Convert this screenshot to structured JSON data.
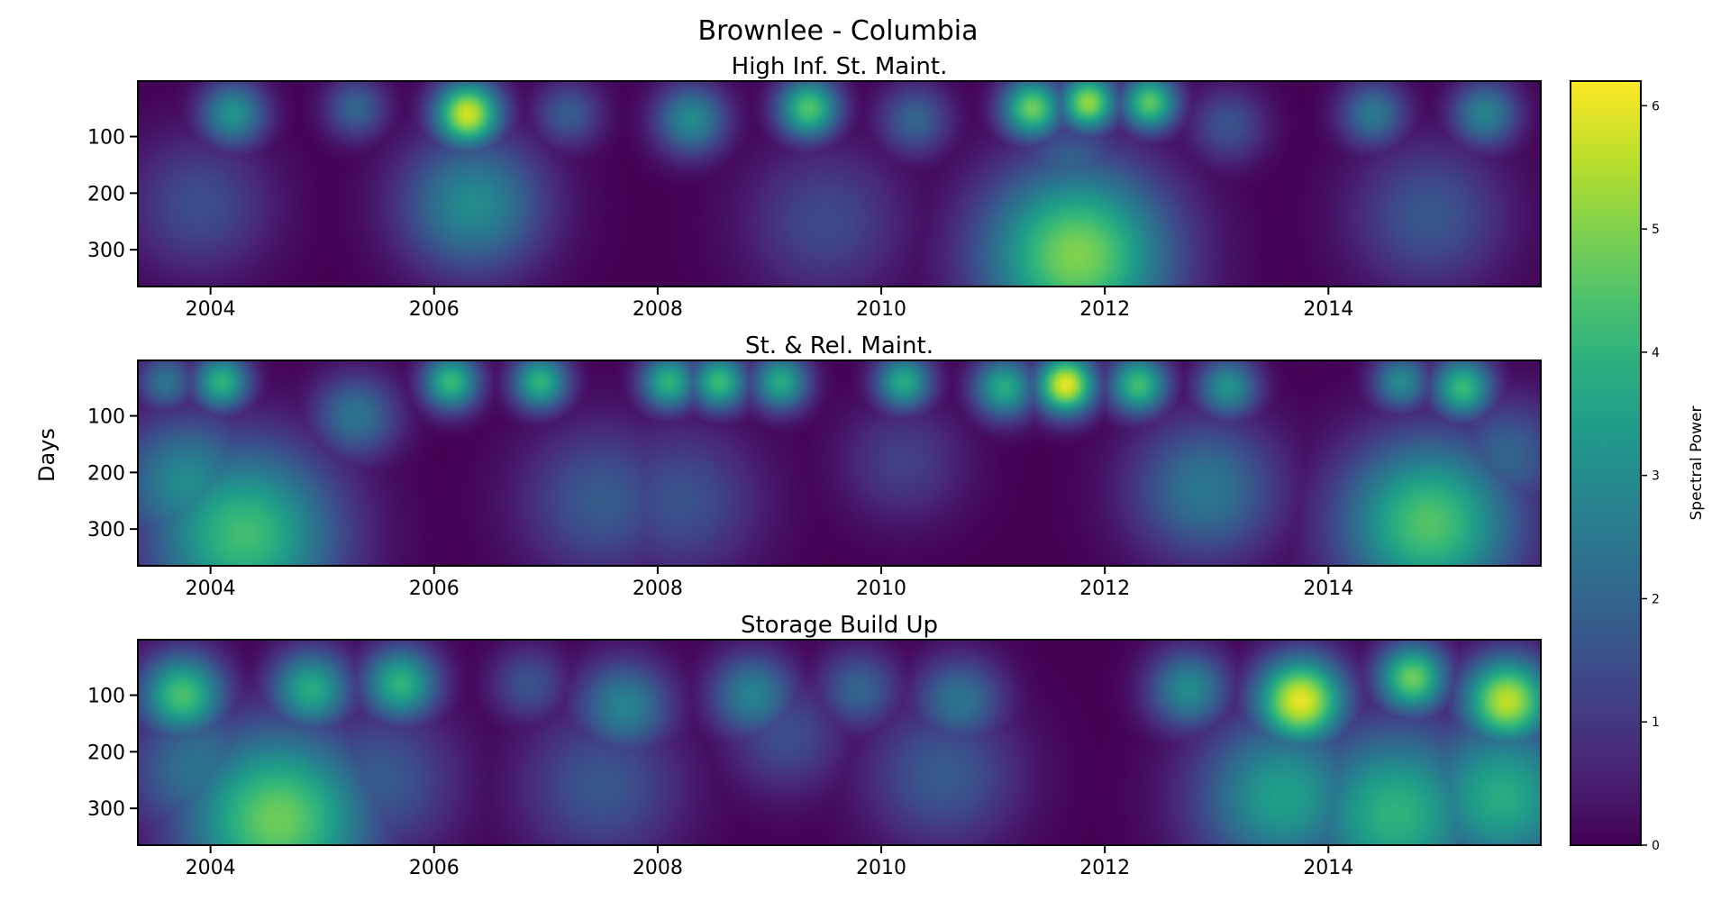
{
  "figure": {
    "title": "Brownlee - Columbia"
  },
  "chart_data": {
    "type": "heatmap",
    "title": "Brownlee - Columbia",
    "ylabel": "Days",
    "colorbar": {
      "label": "Spectral Power",
      "range": [
        0,
        6.2
      ],
      "ticks": [
        0,
        1,
        2,
        3,
        4,
        5,
        6
      ],
      "colormap": "viridis"
    },
    "xlim": [
      2003.35,
      2015.9
    ],
    "ylim": [
      365,
      2
    ],
    "xticks": [
      2004,
      2006,
      2008,
      2010,
      2012,
      2014
    ],
    "yticks": [
      100,
      200,
      300
    ],
    "panels": [
      {
        "title": "High Inf. St. Maint.",
        "blobs": [
          {
            "year": 2004.2,
            "day": 60,
            "power": 3.2
          },
          {
            "year": 2003.9,
            "day": 220,
            "power": 1.5
          },
          {
            "year": 2006.3,
            "day": 60,
            "power": 5.8
          },
          {
            "year": 2006.35,
            "day": 220,
            "power": 3.0
          },
          {
            "year": 2005.3,
            "day": 50,
            "power": 2.0
          },
          {
            "year": 2007.2,
            "day": 60,
            "power": 1.8
          },
          {
            "year": 2008.3,
            "day": 70,
            "power": 3.0
          },
          {
            "year": 2009.35,
            "day": 50,
            "power": 4.5
          },
          {
            "year": 2009.5,
            "day": 250,
            "power": 1.4
          },
          {
            "year": 2010.3,
            "day": 70,
            "power": 2.0
          },
          {
            "year": 2011.35,
            "day": 50,
            "power": 4.8
          },
          {
            "year": 2011.85,
            "day": 40,
            "power": 5.2
          },
          {
            "year": 2012.4,
            "day": 40,
            "power": 4.6
          },
          {
            "year": 2011.75,
            "day": 310,
            "power": 5.0
          },
          {
            "year": 2011.7,
            "day": 160,
            "power": 2.0
          },
          {
            "year": 2013.1,
            "day": 80,
            "power": 1.6
          },
          {
            "year": 2014.4,
            "day": 60,
            "power": 2.5
          },
          {
            "year": 2014.9,
            "day": 240,
            "power": 1.7
          },
          {
            "year": 2015.4,
            "day": 60,
            "power": 2.8
          }
        ]
      },
      {
        "title": "St. & Rel. Maint.",
        "blobs": [
          {
            "year": 2003.6,
            "day": 40,
            "power": 2.4
          },
          {
            "year": 2004.1,
            "day": 40,
            "power": 4.0
          },
          {
            "year": 2004.3,
            "day": 310,
            "power": 4.3
          },
          {
            "year": 2003.8,
            "day": 220,
            "power": 3.0
          },
          {
            "year": 2005.3,
            "day": 100,
            "power": 2.4
          },
          {
            "year": 2006.15,
            "day": 40,
            "power": 4.2
          },
          {
            "year": 2006.95,
            "day": 40,
            "power": 4.0
          },
          {
            "year": 2007.5,
            "day": 250,
            "power": 1.8
          },
          {
            "year": 2008.1,
            "day": 40,
            "power": 4.0
          },
          {
            "year": 2008.55,
            "day": 40,
            "power": 4.2
          },
          {
            "year": 2008.2,
            "day": 250,
            "power": 1.6
          },
          {
            "year": 2009.1,
            "day": 40,
            "power": 3.8
          },
          {
            "year": 2010.2,
            "day": 180,
            "power": 1.2
          },
          {
            "year": 2010.2,
            "day": 40,
            "power": 3.8
          },
          {
            "year": 2011.1,
            "day": 50,
            "power": 3.8
          },
          {
            "year": 2011.65,
            "day": 45,
            "power": 6.0
          },
          {
            "year": 2012.3,
            "day": 45,
            "power": 4.3
          },
          {
            "year": 2013.1,
            "day": 50,
            "power": 3.2
          },
          {
            "year": 2012.9,
            "day": 230,
            "power": 2.5
          },
          {
            "year": 2014.65,
            "day": 40,
            "power": 3.0
          },
          {
            "year": 2015.2,
            "day": 50,
            "power": 4.2
          },
          {
            "year": 2014.9,
            "day": 290,
            "power": 4.5
          },
          {
            "year": 2015.6,
            "day": 170,
            "power": 2.0
          }
        ]
      },
      {
        "title": "Storage Build Up",
        "blobs": [
          {
            "year": 2003.75,
            "day": 100,
            "power": 4.4
          },
          {
            "year": 2004.9,
            "day": 90,
            "power": 3.8
          },
          {
            "year": 2005.7,
            "day": 80,
            "power": 4.0
          },
          {
            "year": 2004.6,
            "day": 320,
            "power": 4.8
          },
          {
            "year": 2003.9,
            "day": 230,
            "power": 2.4
          },
          {
            "year": 2005.5,
            "day": 250,
            "power": 1.8
          },
          {
            "year": 2006.85,
            "day": 80,
            "power": 1.6
          },
          {
            "year": 2007.7,
            "day": 120,
            "power": 2.8
          },
          {
            "year": 2007.5,
            "day": 260,
            "power": 1.7
          },
          {
            "year": 2008.85,
            "day": 100,
            "power": 2.8
          },
          {
            "year": 2009.15,
            "day": 170,
            "power": 1.5
          },
          {
            "year": 2009.8,
            "day": 90,
            "power": 2.0
          },
          {
            "year": 2010.7,
            "day": 110,
            "power": 2.4
          },
          {
            "year": 2010.55,
            "day": 240,
            "power": 1.8
          },
          {
            "year": 2012.75,
            "day": 90,
            "power": 3.0
          },
          {
            "year": 2013.75,
            "day": 110,
            "power": 6.0
          },
          {
            "year": 2013.6,
            "day": 280,
            "power": 3.5
          },
          {
            "year": 2014.6,
            "day": 310,
            "power": 4.0
          },
          {
            "year": 2014.75,
            "day": 70,
            "power": 4.8
          },
          {
            "year": 2015.6,
            "day": 110,
            "power": 5.6
          },
          {
            "year": 2015.55,
            "day": 280,
            "power": 3.8
          }
        ]
      }
    ]
  }
}
